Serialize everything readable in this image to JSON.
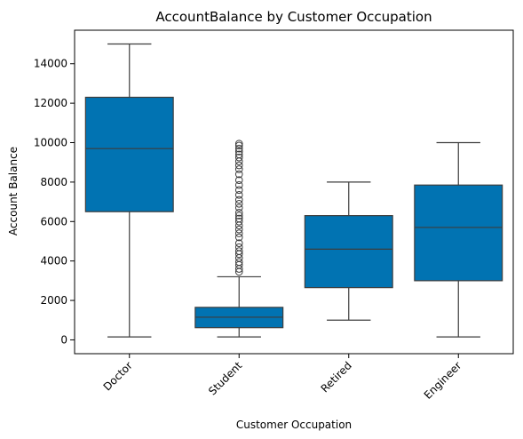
{
  "chart_data": {
    "type": "box",
    "title": "AccountBalance by Customer Occupation",
    "xlabel": "Customer Occupation",
    "ylabel": "Account Balance",
    "categories": [
      "Doctor",
      "Student",
      "Retired",
      "Engineer"
    ],
    "ylim": [
      -700,
      15700
    ],
    "yticks": [
      0,
      2000,
      4000,
      6000,
      8000,
      10000,
      12000,
      14000
    ],
    "grid": false,
    "legend": "none",
    "box_color": "#0173b2",
    "line_color": "#3d3d3d",
    "boxes": [
      {
        "category": "Doctor",
        "whisker_low": 150,
        "q1": 6500,
        "median": 9700,
        "q3": 12300,
        "whisker_high": 15000,
        "outliers": []
      },
      {
        "category": "Student",
        "whisker_low": 150,
        "q1": 620,
        "median": 1150,
        "q3": 1650,
        "whisker_high": 3200,
        "outliers": [
          3450,
          3600,
          3800,
          3950,
          4150,
          4350,
          4500,
          4700,
          4900,
          5200,
          5400,
          5600,
          5800,
          6000,
          6150,
          6300,
          6450,
          6700,
          6900,
          7100,
          7350,
          7600,
          7850,
          8100,
          8400,
          8650,
          8850,
          9050,
          9250,
          9400,
          9550,
          9700,
          9850,
          9950
        ]
      },
      {
        "category": "Retired",
        "whisker_low": 1000,
        "q1": 2650,
        "median": 4600,
        "q3": 6300,
        "whisker_high": 8000,
        "outliers": []
      },
      {
        "category": "Engineer",
        "whisker_low": 150,
        "q1": 3000,
        "median": 5700,
        "q3": 7850,
        "whisker_high": 10000,
        "outliers": []
      }
    ]
  }
}
